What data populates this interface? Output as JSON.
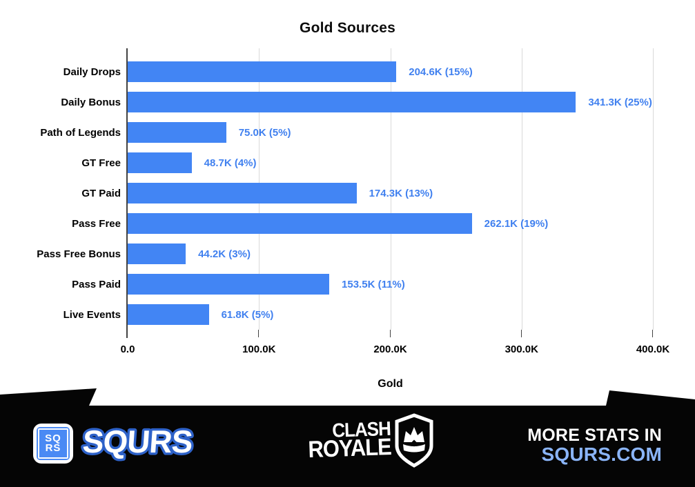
{
  "chart_data": {
    "type": "bar",
    "orientation": "horizontal",
    "title": "Gold Sources",
    "xlabel": "Gold",
    "categories": [
      "Daily Drops",
      "Daily Bonus",
      "Path of Legends",
      "GT Free",
      "GT Paid",
      "Pass Free",
      "Pass Free Bonus",
      "Pass Paid",
      "Live Events"
    ],
    "values": [
      204600,
      341300,
      75000,
      48700,
      174300,
      262100,
      44200,
      153500,
      61800
    ],
    "value_labels": [
      "204.6K (15%)",
      "341.3K (25%)",
      "75.0K (5%)",
      "48.7K (4%)",
      "174.3K (13%)",
      "262.1K (19%)",
      "44.2K (3%)",
      "153.5K (11%)",
      "61.8K (5%)"
    ],
    "xlim": [
      0,
      400000
    ],
    "x_ticks": [
      {
        "value": 0,
        "label": "0.0"
      },
      {
        "value": 100000,
        "label": "100.0K"
      },
      {
        "value": 200000,
        "label": "200.0K"
      },
      {
        "value": 300000,
        "label": "300.0K"
      },
      {
        "value": 400000,
        "label": "400.0K"
      }
    ],
    "grid": "vertical-gridlines-on",
    "legend": "none",
    "bar_color": "#4285F4",
    "annotation_color": "#4080EF",
    "gridline_color": "#d9d9d9",
    "axis_color": "#424242"
  },
  "footer": {
    "background_color": "#050505",
    "brand_badge": {
      "line1": "SQ",
      "line2": "RS",
      "blue": "#4a8af4",
      "icon": "sqrs-logo-icon"
    },
    "brand_name": "SQURS",
    "brand_stroke_color": "#2e62c9",
    "game_logo": {
      "line1": "CLASH",
      "line2": "ROYALE",
      "icon": "shield-crown-icon"
    },
    "cta_line1": "MORE STATS IN",
    "cta_line2": "SQURS.COM",
    "cta_link_color": "#8ab4f8"
  }
}
